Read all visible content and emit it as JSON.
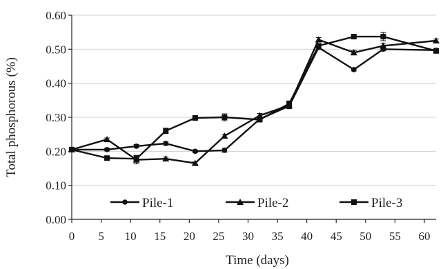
{
  "chart_data": {
    "type": "line",
    "title": "",
    "xlabel": "Time (days)",
    "ylabel": "Total phosphorous (%)",
    "xlim": [
      0,
      62
    ],
    "ylim": [
      0,
      0.6
    ],
    "xticks": [
      "0",
      "5",
      "10",
      "15",
      "20",
      "25",
      "30",
      "35",
      "40",
      "45",
      "50",
      "55",
      "60"
    ],
    "yticks": [
      "0.00",
      "0.10",
      "0.20",
      "0.30",
      "0.40",
      "0.50",
      "0.60"
    ],
    "grid": "horizontal",
    "legend_position": "bottom-center",
    "series": [
      {
        "name": "Pile-1",
        "marker": "circle",
        "x": [
          0,
          6,
          11,
          16,
          21,
          26,
          32,
          37,
          42,
          48,
          53,
          62
        ],
        "y": [
          0.205,
          0.205,
          0.215,
          0.223,
          0.2,
          0.203,
          0.295,
          0.333,
          0.505,
          0.44,
          0.5,
          0.497
        ],
        "err": [
          0.004,
          0.004,
          0.005,
          0.005,
          0.004,
          0.006,
          0.006,
          0.008,
          0.006,
          0.004,
          0.005,
          0.005
        ]
      },
      {
        "name": "Pile-2",
        "marker": "triangle",
        "x": [
          0,
          6,
          11,
          16,
          21,
          26,
          32,
          37,
          42,
          48,
          53,
          62
        ],
        "y": [
          0.205,
          0.235,
          0.175,
          0.178,
          0.165,
          0.245,
          0.305,
          0.335,
          0.528,
          0.49,
          0.51,
          0.525
        ],
        "err": [
          0.004,
          0.004,
          0.012,
          0.005,
          0.004,
          0.005,
          0.006,
          0.008,
          0.006,
          0.006,
          0.008,
          0.005
        ]
      },
      {
        "name": "Pile-3",
        "marker": "square",
        "x": [
          0,
          6,
          11,
          16,
          21,
          26,
          32,
          37,
          42,
          48,
          53,
          62
        ],
        "y": [
          0.205,
          0.18,
          0.178,
          0.26,
          0.298,
          0.3,
          0.293,
          0.34,
          0.51,
          0.537,
          0.537,
          0.495
        ],
        "err": [
          0.004,
          0.004,
          0.01,
          0.008,
          0.004,
          0.01,
          0.006,
          0.008,
          0.006,
          0.005,
          0.012,
          0.005
        ]
      }
    ]
  }
}
